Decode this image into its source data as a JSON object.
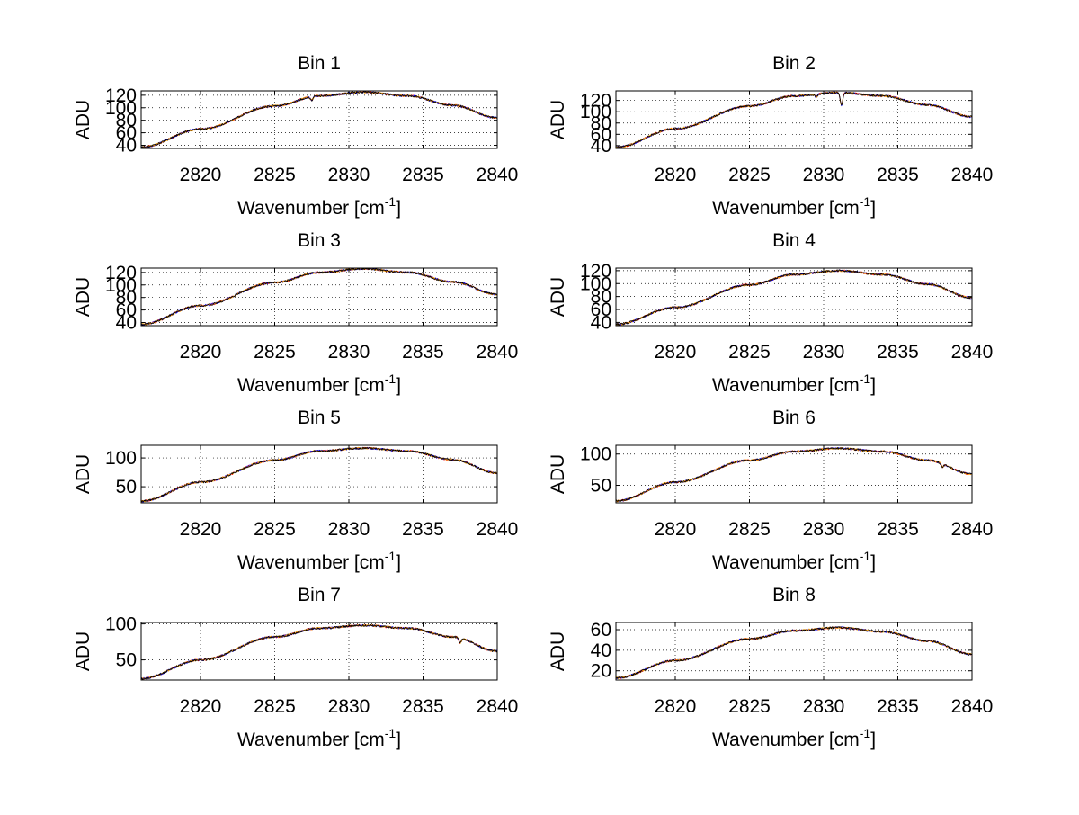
{
  "figure": {
    "background": "#ffffff",
    "panel_count": 8
  },
  "chart_data": [
    {
      "type": "line",
      "title": "Bin 1",
      "xlabel": "Wavenumber [cm",
      "xlabel_sup": "-1",
      "xlabel_end": "]",
      "ylabel": "ADU",
      "xlim": [
        2816,
        2840
      ],
      "ylim": [
        35,
        127
      ],
      "xticks": [
        2820,
        2825,
        2830,
        2835,
        2840
      ],
      "xtick_labels": [
        "2820",
        "2825",
        "2830",
        "2835",
        "2840"
      ],
      "yticks": [
        40,
        60,
        80,
        100,
        120
      ],
      "ytick_labels": [
        "40",
        "60",
        "80",
        "100",
        "120"
      ],
      "grid": true,
      "profile": {
        "x": [
          2816,
          2820,
          2825,
          2828,
          2831,
          2834,
          2837,
          2840
        ],
        "y": [
          37,
          66,
          103,
          119,
          125,
          119,
          104,
          84
        ]
      },
      "features": [
        {
          "x": 2827.5,
          "depth": 6
        }
      ],
      "series_colors": [
        "#ff0000",
        "#0000ff",
        "#ffa500",
        "#000000"
      ]
    },
    {
      "type": "line",
      "title": "Bin 2",
      "xlabel": "Wavenumber [cm",
      "xlabel_sup": "-1",
      "xlabel_end": "]",
      "ylabel": "ADU",
      "xlim": [
        2816,
        2840
      ],
      "ylim": [
        35,
        137
      ],
      "xticks": [
        2820,
        2825,
        2830,
        2835,
        2840
      ],
      "xtick_labels": [
        "2820",
        "2825",
        "2830",
        "2835",
        "2840"
      ],
      "yticks": [
        40,
        60,
        80,
        100,
        120
      ],
      "ytick_labels": [
        "40",
        "60",
        "80",
        "100",
        "120"
      ],
      "grid": true,
      "profile": {
        "x": [
          2816,
          2820,
          2825,
          2828,
          2831,
          2834,
          2837,
          2840
        ],
        "y": [
          37,
          70,
          110,
          128,
          134,
          128,
          112,
          91
        ]
      },
      "features": [
        {
          "x": 2831.2,
          "depth": 22
        },
        {
          "x": 2829.5,
          "depth": 5
        }
      ],
      "series_colors": [
        "#ff0000",
        "#0000ff",
        "#ffa500",
        "#000000"
      ]
    },
    {
      "type": "line",
      "title": "Bin 3",
      "xlabel": "Wavenumber [cm",
      "xlabel_sup": "-1",
      "xlabel_end": "]",
      "ylabel": "ADU",
      "xlim": [
        2816,
        2840
      ],
      "ylim": [
        35,
        127
      ],
      "xticks": [
        2820,
        2825,
        2830,
        2835,
        2840
      ],
      "xtick_labels": [
        "2820",
        "2825",
        "2830",
        "2835",
        "2840"
      ],
      "yticks": [
        40,
        60,
        80,
        100,
        120
      ],
      "ytick_labels": [
        "40",
        "60",
        "80",
        "100",
        "120"
      ],
      "grid": true,
      "profile": {
        "x": [
          2816,
          2820,
          2825,
          2828,
          2831,
          2834,
          2837,
          2840
        ],
        "y": [
          37,
          67,
          104,
          120,
          126,
          120,
          105,
          85
        ]
      },
      "features": [],
      "series_colors": [
        "#ff0000",
        "#0000ff",
        "#ffa500",
        "#000000"
      ]
    },
    {
      "type": "line",
      "title": "Bin 4",
      "xlabel": "Wavenumber [cm",
      "xlabel_sup": "-1",
      "xlabel_end": "]",
      "ylabel": "ADU",
      "xlim": [
        2816,
        2840
      ],
      "ylim": [
        35,
        124
      ],
      "xticks": [
        2820,
        2825,
        2830,
        2835,
        2840
      ],
      "xtick_labels": [
        "2820",
        "2825",
        "2830",
        "2835",
        "2840"
      ],
      "yticks": [
        40,
        60,
        80,
        100,
        120
      ],
      "ytick_labels": [
        "40",
        "60",
        "80",
        "100",
        "120"
      ],
      "grid": true,
      "profile": {
        "x": [
          2816,
          2820,
          2825,
          2828,
          2831,
          2834,
          2837,
          2840
        ],
        "y": [
          37,
          63,
          98,
          114,
          120,
          114,
          99,
          78
        ]
      },
      "features": [],
      "series_colors": [
        "#ff0000",
        "#0000ff",
        "#ffa500",
        "#000000"
      ]
    },
    {
      "type": "line",
      "title": "Bin 5",
      "xlabel": "Wavenumber [cm",
      "xlabel_sup": "-1",
      "xlabel_end": "]",
      "ylabel": "ADU",
      "xlim": [
        2816,
        2840
      ],
      "ylim": [
        22,
        122
      ],
      "xticks": [
        2820,
        2825,
        2830,
        2835,
        2840
      ],
      "xtick_labels": [
        "2820",
        "2825",
        "2830",
        "2835",
        "2840"
      ],
      "yticks": [
        50,
        100
      ],
      "ytick_labels": [
        "50",
        "100"
      ],
      "grid": true,
      "profile": {
        "x": [
          2816,
          2820,
          2825,
          2828,
          2831,
          2834,
          2837,
          2840
        ],
        "y": [
          25,
          58,
          96,
          112,
          117,
          112,
          97,
          74
        ]
      },
      "features": [],
      "series_colors": [
        "#ff0000",
        "#0000ff",
        "#ffa500",
        "#000000"
      ]
    },
    {
      "type": "line",
      "title": "Bin 6",
      "xlabel": "Wavenumber [cm",
      "xlabel_sup": "-1",
      "xlabel_end": "]",
      "ylabel": "ADU",
      "xlim": [
        2816,
        2840
      ],
      "ylim": [
        22,
        114
      ],
      "xticks": [
        2820,
        2825,
        2830,
        2835,
        2840
      ],
      "xtick_labels": [
        "2820",
        "2825",
        "2830",
        "2835",
        "2840"
      ],
      "yticks": [
        50,
        100
      ],
      "ytick_labels": [
        "50",
        "100"
      ],
      "grid": true,
      "profile": {
        "x": [
          2816,
          2820,
          2825,
          2828,
          2831,
          2834,
          2837,
          2840
        ],
        "y": [
          25,
          55,
          90,
          104,
          109,
          104,
          90,
          68
        ]
      },
      "features": [
        {
          "x": 2838.0,
          "depth": 5
        }
      ],
      "series_colors": [
        "#ff0000",
        "#0000ff",
        "#ffa500",
        "#000000"
      ]
    },
    {
      "type": "line",
      "title": "Bin 7",
      "xlabel": "Wavenumber [cm",
      "xlabel_sup": "-1",
      "xlabel_end": "]",
      "ylabel": "ADU",
      "xlim": [
        2816,
        2840
      ],
      "ylim": [
        22,
        102
      ],
      "xticks": [
        2820,
        2825,
        2830,
        2835,
        2840
      ],
      "xtick_labels": [
        "2820",
        "2825",
        "2830",
        "2835",
        "2840"
      ],
      "yticks": [
        50,
        100
      ],
      "ytick_labels": [
        "50",
        "100"
      ],
      "grid": true,
      "profile": {
        "x": [
          2816,
          2820,
          2825,
          2828,
          2831,
          2834,
          2837,
          2840
        ],
        "y": [
          24,
          50,
          82,
          94,
          98,
          94,
          82,
          62
        ]
      },
      "features": [
        {
          "x": 2837.5,
          "depth": 7
        }
      ],
      "series_colors": [
        "#ff0000",
        "#0000ff",
        "#ffa500",
        "#000000"
      ]
    },
    {
      "type": "line",
      "title": "Bin 8",
      "xlabel": "Wavenumber [cm",
      "xlabel_sup": "-1",
      "xlabel_end": "]",
      "ylabel": "ADU",
      "xlim": [
        2816,
        2840
      ],
      "ylim": [
        11,
        67
      ],
      "xticks": [
        2820,
        2825,
        2830,
        2835,
        2840
      ],
      "xtick_labels": [
        "2820",
        "2825",
        "2830",
        "2835",
        "2840"
      ],
      "yticks": [
        20,
        40,
        60
      ],
      "ytick_labels": [
        "20",
        "40",
        "60"
      ],
      "grid": true,
      "profile": {
        "x": [
          2816,
          2820,
          2825,
          2828,
          2831,
          2834,
          2837,
          2840
        ],
        "y": [
          13,
          30,
          51,
          59,
          62,
          58,
          49,
          36
        ]
      },
      "features": [],
      "series_colors": [
        "#ff0000",
        "#0000ff",
        "#ffa500",
        "#000000"
      ]
    }
  ]
}
